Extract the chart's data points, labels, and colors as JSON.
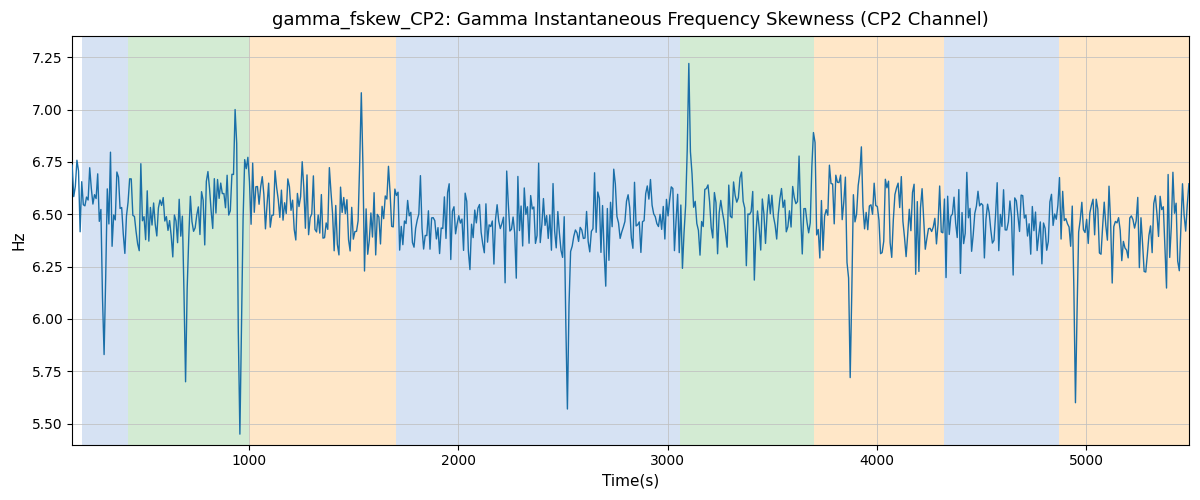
{
  "title": "gamma_fskew_CP2: Gamma Instantaneous Frequency Skewness (CP2 Channel)",
  "xlabel": "Time(s)",
  "ylabel": "Hz",
  "xlim": [
    155,
    5490
  ],
  "ylim": [
    5.4,
    7.35
  ],
  "yticks": [
    5.5,
    5.75,
    6.0,
    6.25,
    6.5,
    6.75,
    7.0,
    7.25
  ],
  "xticks": [
    1000,
    2000,
    3000,
    4000,
    5000
  ],
  "bg_bands": [
    {
      "xmin": 200,
      "xmax": 420,
      "color": "#aec6e8",
      "alpha": 0.5
    },
    {
      "xmin": 420,
      "xmax": 1000,
      "color": "#a8d8a8",
      "alpha": 0.5
    },
    {
      "xmin": 1000,
      "xmax": 1700,
      "color": "#ffd59b",
      "alpha": 0.55
    },
    {
      "xmin": 1700,
      "xmax": 3060,
      "color": "#aec6e8",
      "alpha": 0.5
    },
    {
      "xmin": 3060,
      "xmax": 3700,
      "color": "#a8d8a8",
      "alpha": 0.5
    },
    {
      "xmin": 3700,
      "xmax": 4320,
      "color": "#ffd59b",
      "alpha": 0.55
    },
    {
      "xmin": 4320,
      "xmax": 4870,
      "color": "#aec6e8",
      "alpha": 0.5
    },
    {
      "xmin": 4870,
      "xmax": 5490,
      "color": "#ffd59b",
      "alpha": 0.55
    }
  ],
  "line_color": "#1a6fa8",
  "line_width": 1.0,
  "grid_color": "#c0c0c0",
  "grid_alpha": 0.8,
  "title_fontsize": 13,
  "label_fontsize": 11,
  "tick_fontsize": 10,
  "figsize": [
    12.0,
    5.0
  ],
  "dpi": 100
}
